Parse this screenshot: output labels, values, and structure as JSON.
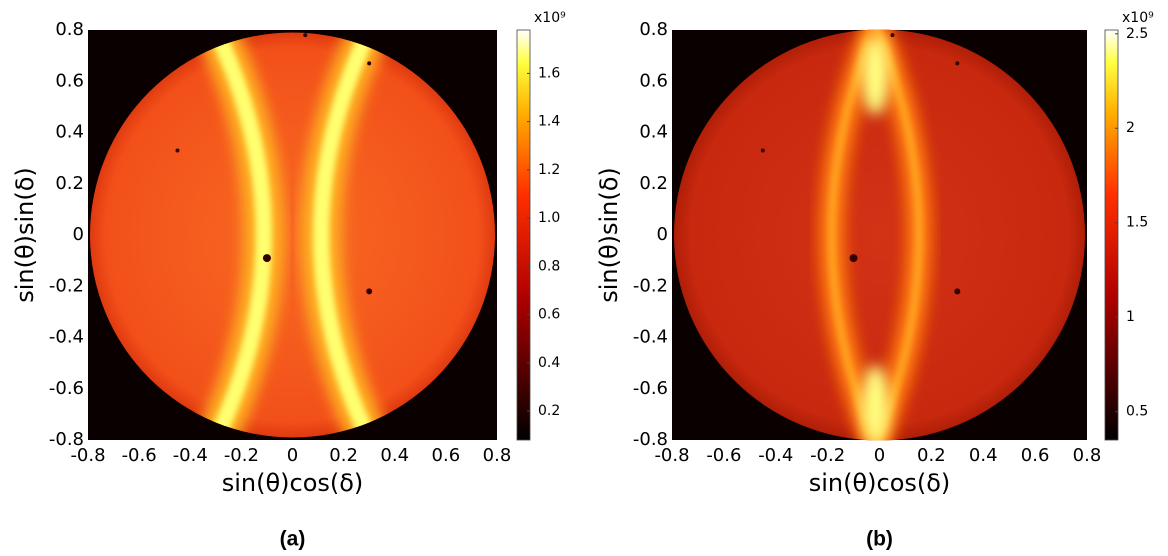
{
  "chart_data": [
    {
      "type": "image",
      "x_label": "sin(θ)cos(δ)",
      "y_label": "sin(θ)sin(δ)",
      "caption": "(a)",
      "xlim": [
        -0.8,
        0.8
      ],
      "ylim": [
        -0.8,
        0.8
      ],
      "xticks": [
        -0.8,
        -0.6,
        -0.4,
        -0.2,
        0,
        0.2,
        0.4,
        0.6,
        0.8
      ],
      "yticks": [
        -0.8,
        -0.6,
        -0.4,
        -0.2,
        0,
        0.2,
        0.4,
        0.6,
        0.8
      ],
      "colorbar": {
        "exponent": "x10⁹",
        "lim": [
          0.08,
          1.78
        ],
        "ticks": [
          0.2,
          0.4,
          0.6,
          0.8,
          {
            "value": 1,
            "label": "1.0"
          },
          1.2,
          1.4,
          1.6
        ]
      }
    },
    {
      "type": "image",
      "x_label": "sin(θ)cos(δ)",
      "y_label": "sin(θ)sin(δ)",
      "caption": "(b)",
      "xlim": [
        -0.8,
        0.8
      ],
      "ylim": [
        -0.8,
        0.8
      ],
      "xticks": [
        -0.8,
        -0.6,
        -0.4,
        -0.2,
        0,
        0.2,
        0.4,
        0.6,
        0.8
      ],
      "yticks": [
        -0.8,
        -0.6,
        -0.4,
        -0.2,
        0,
        0.2,
        0.4,
        0.6,
        0.8
      ],
      "colorbar": {
        "exponent": "x10⁹",
        "lim": [
          0.35,
          2.52
        ],
        "ticks": [
          0.5,
          1,
          1.5,
          2,
          2.5
        ]
      }
    }
  ]
}
